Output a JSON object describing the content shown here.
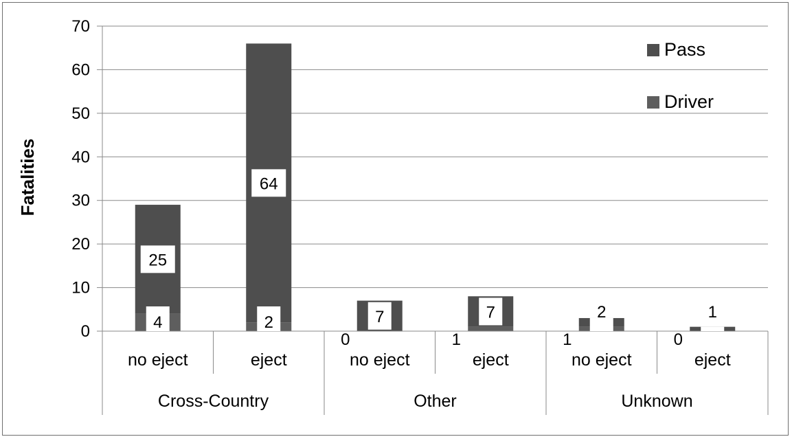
{
  "chart_data": {
    "type": "bar",
    "stacked": true,
    "title": "",
    "ylabel": "Fatalities",
    "xlabel": "",
    "ylim": [
      0,
      70
    ],
    "yticks": [
      0,
      10,
      20,
      30,
      40,
      50,
      60,
      70
    ],
    "grid": true,
    "legend_position": "top-right",
    "categories": [
      "no eject",
      "eject",
      "no eject",
      "eject",
      "no eject",
      "eject"
    ],
    "groups": [
      {
        "label": "Cross-Country",
        "span": [
          0,
          1
        ]
      },
      {
        "label": "Other",
        "span": [
          2,
          3
        ]
      },
      {
        "label": "Unknown",
        "span": [
          4,
          5
        ]
      }
    ],
    "series": [
      {
        "name": "Driver",
        "values": [
          4,
          2,
          0,
          1,
          1,
          0
        ],
        "color": "#5e5e5e"
      },
      {
        "name": "Pass",
        "values": [
          25,
          64,
          7,
          7,
          2,
          1
        ],
        "color": "#4e4e4e"
      }
    ],
    "legend_order": [
      "Pass",
      "Driver"
    ]
  }
}
